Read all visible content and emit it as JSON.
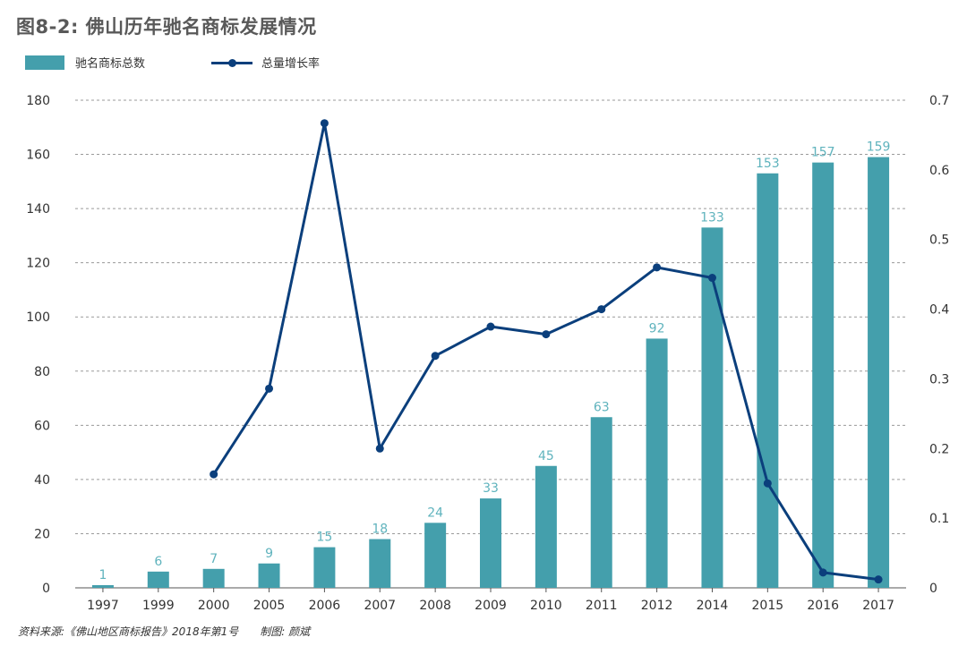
{
  "title": "图8-2: 佛山历年驰名商标发展情况",
  "legend": {
    "bar_label": "驰名商标总数",
    "line_label": "总量增长率"
  },
  "source": {
    "text": "资料来源:《佛山地区商标报告》2018年第1号",
    "credit": "制图: 颜斌"
  },
  "colors": {
    "bar": "#449fac",
    "bar_label": "#5fb3bd",
    "line": "#0b3f7c",
    "grid": "#9a9a9a",
    "axis": "#555555"
  },
  "chart_data": {
    "type": "bar",
    "categories": [
      "1997",
      "1999",
      "2000",
      "2005",
      "2006",
      "2007",
      "2008",
      "2009",
      "2010",
      "2011",
      "2012",
      "2014",
      "2015",
      "2016",
      "2017"
    ],
    "series": [
      {
        "name": "驰名商标总数",
        "type": "bar",
        "axis": "left",
        "values": [
          1,
          6,
          7,
          9,
          15,
          18,
          24,
          33,
          45,
          63,
          92,
          133,
          153,
          157,
          159
        ]
      },
      {
        "name": "总量增长率",
        "type": "line",
        "axis": "right",
        "values": [
          null,
          null,
          0.163,
          0.286,
          0.667,
          0.2,
          0.333,
          0.375,
          0.364,
          0.4,
          0.46,
          0.445,
          0.15,
          0.022,
          0.012
        ]
      }
    ],
    "y_left": {
      "min": 0,
      "max": 180,
      "ticks": [
        "0",
        "20",
        "40",
        "60",
        "80",
        "100",
        "120",
        "140",
        "160",
        "180"
      ]
    },
    "y_right": {
      "min": 0,
      "max": 0.7,
      "ticks": [
        "0",
        "0.1",
        "0.2",
        "0.3",
        "0.4",
        "0.5",
        "0.6",
        "0.7"
      ]
    },
    "grid": true,
    "legend_position": "top-left"
  }
}
